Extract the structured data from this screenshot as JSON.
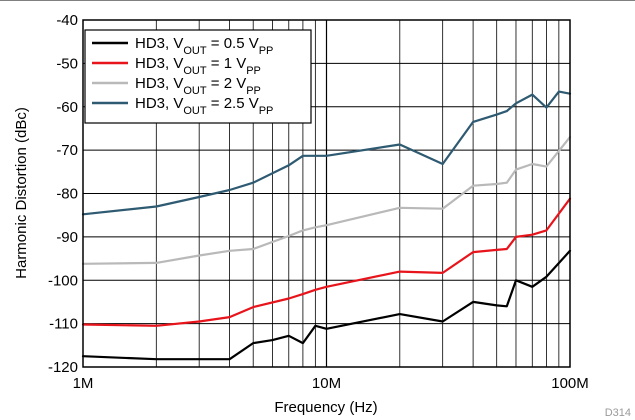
{
  "figure_id": "D314",
  "chart_data": {
    "type": "line",
    "xscale": "log",
    "xlim": [
      1000000,
      100000000
    ],
    "ylim": [
      -120,
      -40
    ],
    "grid": true,
    "legend_position": "top-left",
    "xlabel": "Frequency (Hz)",
    "ylabel": "Harmonic Distortion (dBc)",
    "x_tick_labels": [
      "1M",
      "10M",
      "100M"
    ],
    "y_tick_labels": [
      "-40",
      "-50",
      "-60",
      "-70",
      "-80",
      "-90",
      "-100",
      "-110",
      "-120"
    ],
    "series": [
      {
        "name": "HD3, VOUT = 0.5 VPP",
        "legend": {
          "prefix": "HD3, V",
          "sub1": "OUT",
          "mid": " = 0.5 V",
          "sub2": "PP"
        },
        "color": "#000000",
        "points": [
          [
            1000000,
            -117.5
          ],
          [
            2000000,
            -118.2
          ],
          [
            3000000,
            -118.2
          ],
          [
            4000000,
            -118.2
          ],
          [
            5000000,
            -114.5
          ],
          [
            6000000,
            -113.8
          ],
          [
            7000000,
            -112.8
          ],
          [
            8000000,
            -114.5
          ],
          [
            9000000,
            -110.5
          ],
          [
            10000000,
            -111.2
          ],
          [
            20000000,
            -107.8
          ],
          [
            30000000,
            -109.5
          ],
          [
            40000000,
            -105.0
          ],
          [
            50000000,
            -105.8
          ],
          [
            55000000,
            -106.0
          ],
          [
            60000000,
            -100.0
          ],
          [
            70000000,
            -101.5
          ],
          [
            80000000,
            -99.2
          ],
          [
            100000000,
            -93.2
          ]
        ]
      },
      {
        "name": "HD3, VOUT = 1 VPP",
        "legend": {
          "prefix": "HD3, V",
          "sub1": "OUT",
          "mid": " = 1 V",
          "sub2": "PP"
        },
        "color": "#e8141c",
        "points": [
          [
            1000000,
            -110.2
          ],
          [
            2000000,
            -110.5
          ],
          [
            3000000,
            -109.5
          ],
          [
            4000000,
            -108.5
          ],
          [
            5000000,
            -106.2
          ],
          [
            7000000,
            -104.2
          ],
          [
            8000000,
            -103.2
          ],
          [
            9000000,
            -102.2
          ],
          [
            10000000,
            -101.5
          ],
          [
            20000000,
            -98.0
          ],
          [
            30000000,
            -98.3
          ],
          [
            40000000,
            -93.5
          ],
          [
            50000000,
            -93.0
          ],
          [
            55000000,
            -92.8
          ],
          [
            60000000,
            -90.0
          ],
          [
            70000000,
            -89.5
          ],
          [
            80000000,
            -88.5
          ],
          [
            100000000,
            -81.2
          ]
        ]
      },
      {
        "name": "HD3, VOUT = 2 VPP",
        "legend": {
          "prefix": "HD3, V",
          "sub1": "OUT",
          "mid": " = 2 V",
          "sub2": "PP"
        },
        "color": "#b9b9b9",
        "points": [
          [
            1000000,
            -96.2
          ],
          [
            2000000,
            -96.0
          ],
          [
            3000000,
            -94.3
          ],
          [
            4000000,
            -93.2
          ],
          [
            5000000,
            -92.8
          ],
          [
            7000000,
            -89.8
          ],
          [
            8000000,
            -88.5
          ],
          [
            9000000,
            -87.8
          ],
          [
            10000000,
            -87.3
          ],
          [
            20000000,
            -83.3
          ],
          [
            30000000,
            -83.5
          ],
          [
            40000000,
            -78.2
          ],
          [
            50000000,
            -77.8
          ],
          [
            55000000,
            -77.5
          ],
          [
            60000000,
            -74.5
          ],
          [
            70000000,
            -73.2
          ],
          [
            80000000,
            -73.8
          ],
          [
            100000000,
            -67.0
          ]
        ]
      },
      {
        "name": "HD3, VOUT = 2.5 VPP",
        "legend": {
          "prefix": "HD3, V",
          "sub1": "OUT",
          "mid": " = 2.5 V",
          "sub2": "PP"
        },
        "color": "#2e5a72",
        "points": [
          [
            1000000,
            -84.8
          ],
          [
            2000000,
            -83.0
          ],
          [
            3000000,
            -80.8
          ],
          [
            4000000,
            -79.2
          ],
          [
            5000000,
            -77.5
          ],
          [
            7000000,
            -73.5
          ],
          [
            8000000,
            -71.3
          ],
          [
            9000000,
            -71.3
          ],
          [
            10000000,
            -71.3
          ],
          [
            20000000,
            -68.7
          ],
          [
            30000000,
            -73.2
          ],
          [
            40000000,
            -63.5
          ],
          [
            50000000,
            -61.8
          ],
          [
            55000000,
            -61.0
          ],
          [
            60000000,
            -59.2
          ],
          [
            70000000,
            -57.2
          ],
          [
            80000000,
            -60.2
          ],
          [
            90000000,
            -56.5
          ],
          [
            100000000,
            -57.0
          ]
        ]
      }
    ]
  }
}
